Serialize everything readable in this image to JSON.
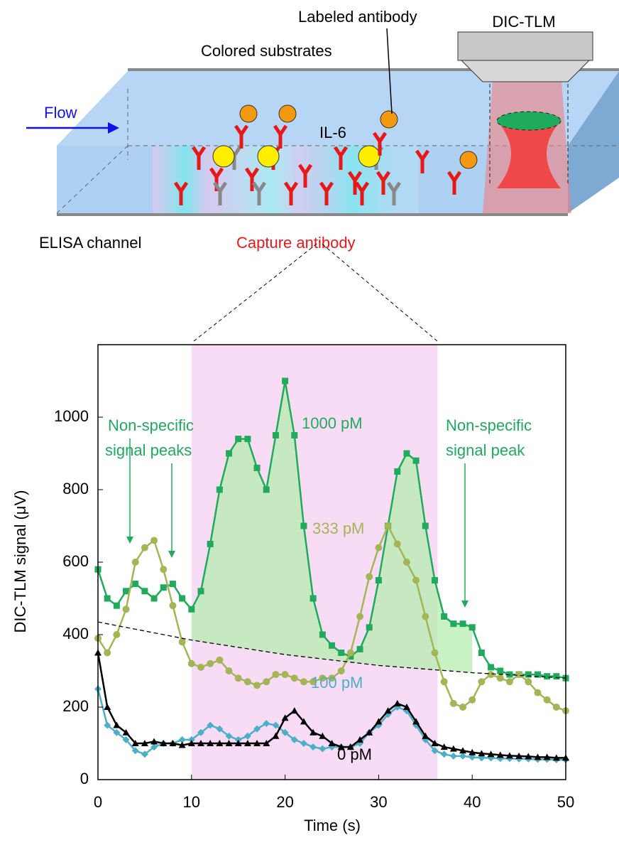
{
  "diagram": {
    "labeled_antibody": "Labeled antibody",
    "instrument": "DIC-TLM",
    "substrates": "Colored substrates",
    "flow": "Flow",
    "antigen": "IL-6",
    "channel": "ELISA channel",
    "capture": "Capture antibody"
  },
  "chart_data": {
    "type": "line",
    "x_label": "Time (s)",
    "y_label": "DIC-TLM signal (μV)",
    "x": [
      0,
      1,
      2,
      3,
      4,
      5,
      6,
      7,
      8,
      9,
      10,
      11,
      12,
      13,
      14,
      15,
      16,
      17,
      18,
      19,
      20,
      21,
      22,
      23,
      24,
      25,
      26,
      27,
      28,
      29,
      30,
      31,
      32,
      33,
      34,
      35,
      36,
      37,
      38,
      39,
      40,
      41,
      42,
      43,
      44,
      45,
      46,
      47,
      48,
      49,
      50
    ],
    "series": [
      {
        "name": "1000 pM",
        "color": "#1faa5c",
        "marker": "square",
        "values": [
          580,
          500,
          480,
          520,
          540,
          520,
          500,
          530,
          540,
          500,
          470,
          520,
          650,
          800,
          900,
          940,
          940,
          860,
          800,
          950,
          1100,
          950,
          700,
          500,
          400,
          370,
          350,
          340,
          360,
          420,
          550,
          700,
          850,
          900,
          880,
          700,
          550,
          450,
          430,
          430,
          420,
          350,
          310,
          300,
          290,
          290,
          290,
          290,
          285,
          285,
          280
        ]
      },
      {
        "name": "333 pM",
        "color": "#a3b554",
        "marker": "circle",
        "values": [
          390,
          350,
          400,
          470,
          600,
          640,
          660,
          580,
          480,
          380,
          320,
          310,
          320,
          330,
          300,
          280,
          270,
          260,
          270,
          290,
          290,
          280,
          270,
          270,
          280,
          280,
          300,
          350,
          450,
          560,
          640,
          700,
          650,
          600,
          550,
          450,
          350,
          270,
          210,
          200,
          220,
          270,
          290,
          280,
          270,
          290,
          270,
          240,
          220,
          200,
          190
        ]
      },
      {
        "name": "100 pM",
        "color": "#4bafc8",
        "marker": "diamond",
        "values": [
          250,
          150,
          130,
          110,
          80,
          70,
          90,
          100,
          100,
          110,
          110,
          130,
          150,
          140,
          120,
          110,
          120,
          140,
          155,
          150,
          130,
          110,
          100,
          90,
          85,
          90,
          90,
          90,
          100,
          130,
          150,
          180,
          200,
          190,
          150,
          110,
          80,
          70,
          65,
          65,
          62,
          60,
          60,
          58,
          58,
          57,
          57,
          56,
          56,
          55,
          55
        ]
      },
      {
        "name": "0 pM",
        "color": "#000000",
        "marker": "triangle",
        "values": [
          350,
          200,
          150,
          130,
          100,
          100,
          105,
          100,
          100,
          95,
          100,
          100,
          100,
          100,
          100,
          100,
          100,
          100,
          100,
          120,
          170,
          190,
          160,
          130,
          120,
          100,
          90,
          90,
          110,
          130,
          160,
          190,
          210,
          200,
          160,
          120,
          100,
          90,
          85,
          80,
          75,
          72,
          70,
          68,
          66,
          65,
          64,
          62,
          62,
          60,
          60
        ]
      }
    ],
    "reference_line": {
      "x": [
        0,
        10,
        20,
        30,
        40,
        50
      ],
      "values": [
        435,
        385,
        345,
        315,
        295,
        280
      ]
    },
    "highlight_span": [
      10,
      36.3
    ],
    "area_span": [
      10,
      40
    ],
    "annotations": [
      {
        "lines": [
          "Non-specific",
          "signal peaks"
        ]
      },
      {
        "lines": [
          "Non-specific",
          "signal peak"
        ]
      }
    ],
    "xlim": [
      0,
      50
    ],
    "xticks": [
      0,
      10,
      20,
      30,
      40,
      50
    ],
    "ylim": [
      0,
      1200
    ],
    "yticks": [
      0,
      200,
      400,
      600,
      800,
      1000
    ]
  }
}
